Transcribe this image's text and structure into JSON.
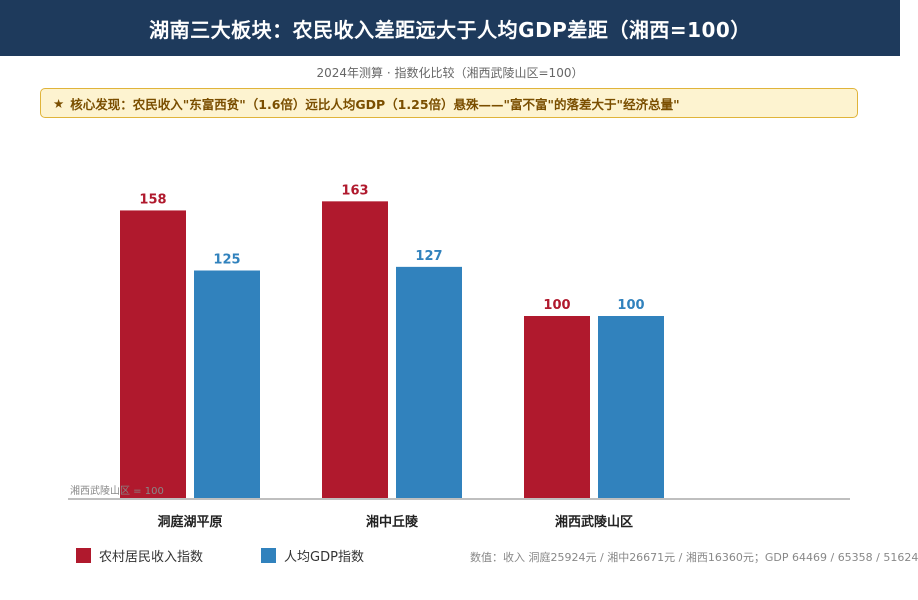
{
  "chart_data": {
    "type": "bar",
    "title": "湖南三大板块：农民收入差距远大于人均GDP差距（湘西=100）",
    "subtitle": "2024年测算 · 指数化比较（湘西武陵山区=100）",
    "callout": "核心发现：农民收入\"东富西贫\"（1.6倍）远比人均GDP（1.25倍）悬殊——\"富不富\"的落差大于\"经济总量\"",
    "categories": [
      "洞庭湖平原",
      "湘中丘陵",
      "湘西武陵山区"
    ],
    "series": [
      {
        "name": "农村居民收入指数",
        "values": [
          158,
          163,
          100
        ],
        "color": "#b0192d"
      },
      {
        "name": "人均GDP指数",
        "values": [
          125,
          127,
          100
        ],
        "color": "#3182bd"
      }
    ],
    "baseline_label": "湘西武陵山区 = 100",
    "ylim": [
      0,
      180
    ],
    "grid": false,
    "legend_position": "bottom-left",
    "note": "数值：收入 洞庭25924元 / 湘中26671元 / 湘西16360元；GDP 64469 / 65358 / 51624"
  }
}
